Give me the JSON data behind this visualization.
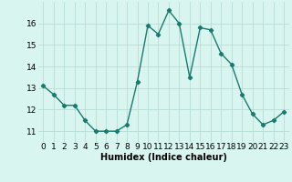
{
  "x": [
    0,
    1,
    2,
    3,
    4,
    5,
    6,
    7,
    8,
    9,
    10,
    11,
    12,
    13,
    14,
    15,
    16,
    17,
    18,
    19,
    20,
    21,
    22,
    23
  ],
  "y": [
    13.1,
    12.7,
    12.2,
    12.2,
    11.5,
    11.0,
    11.0,
    11.0,
    11.3,
    13.3,
    15.9,
    15.5,
    16.6,
    16.0,
    13.5,
    15.8,
    15.7,
    14.6,
    14.1,
    12.7,
    11.8,
    11.3,
    11.5,
    11.9
  ],
  "line_color": "#1a7a6e",
  "marker": "D",
  "marker_size": 2.2,
  "bg_color": "#d8f5f0",
  "grid_color": "#b8ddd8",
  "xlabel": "Humidex (Indice chaleur)",
  "xlabel_fontsize": 7,
  "tick_fontsize": 6.5,
  "xlim": [
    -0.5,
    23.5
  ],
  "ylim": [
    10.5,
    17.0
  ],
  "yticks": [
    11,
    12,
    13,
    14,
    15,
    16
  ],
  "xticks": [
    0,
    1,
    2,
    3,
    4,
    5,
    6,
    7,
    8,
    9,
    10,
    11,
    12,
    13,
    14,
    15,
    16,
    17,
    18,
    19,
    20,
    21,
    22,
    23
  ]
}
